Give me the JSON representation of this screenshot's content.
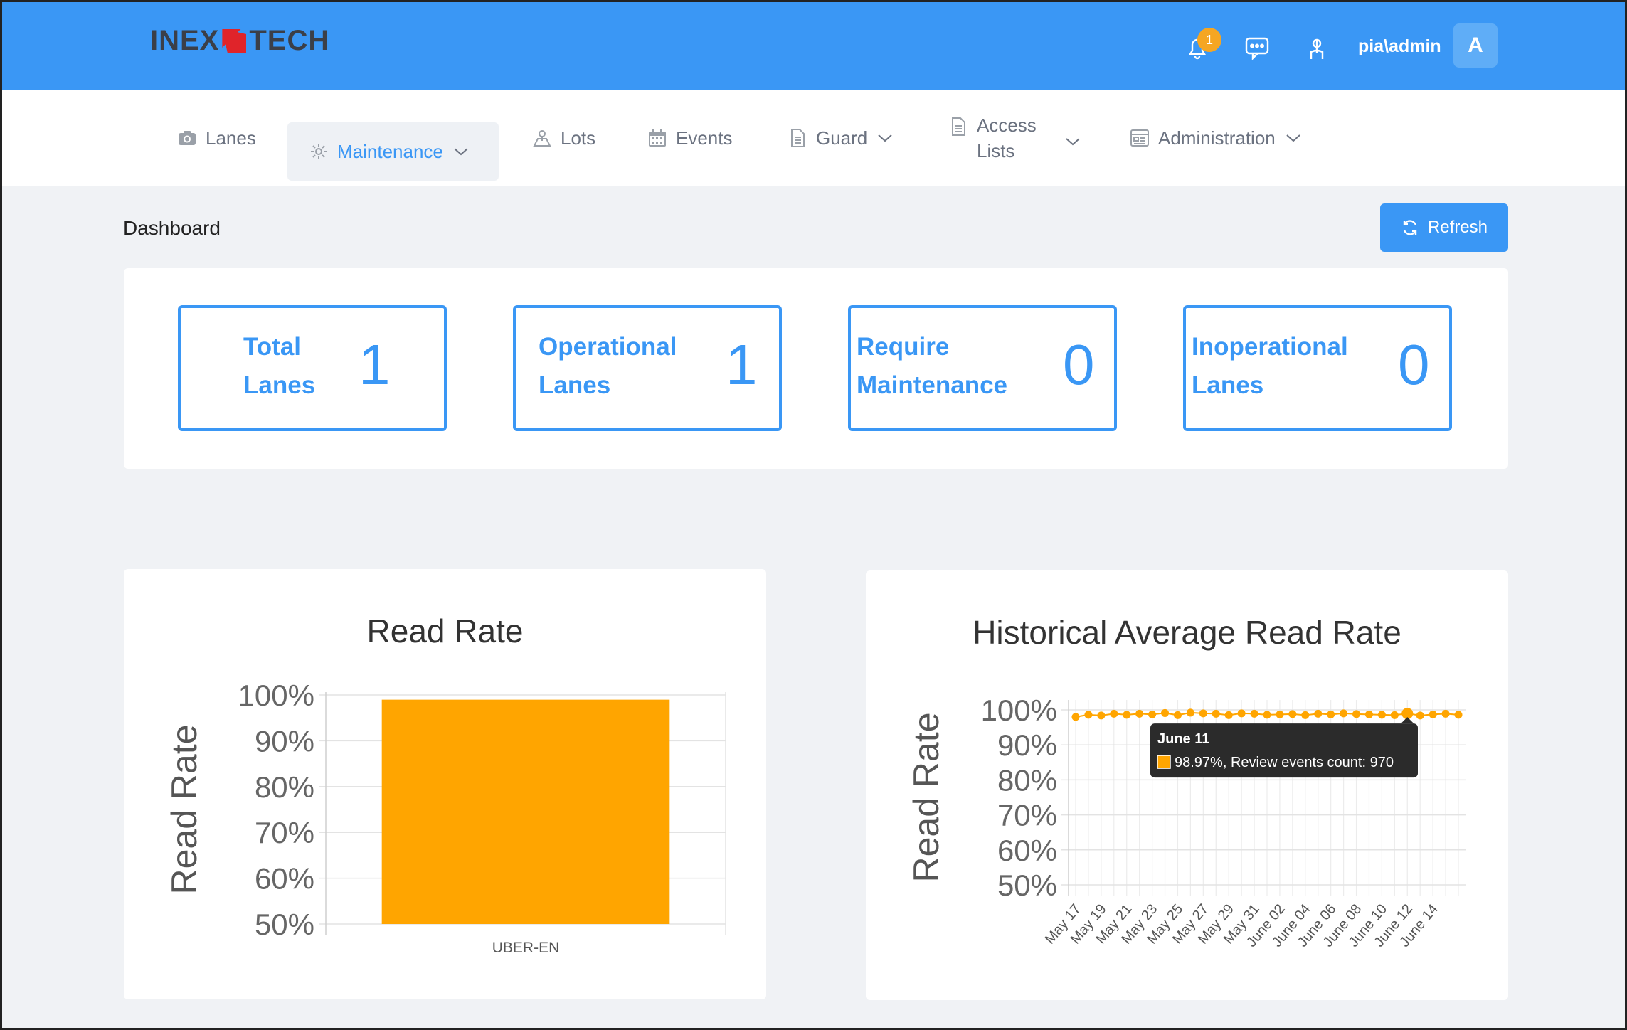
{
  "header": {
    "logo_left": "INEX",
    "logo_right": "TECH",
    "notification_count": "1",
    "username": "pia\\admin",
    "avatar_letter": "A"
  },
  "nav": {
    "items": [
      {
        "label": "Lanes"
      },
      {
        "label": "Maintenance"
      },
      {
        "label": "Lots"
      },
      {
        "label": "Events"
      },
      {
        "label": "Guard"
      },
      {
        "label_line1": "Access",
        "label_line2": "Lists"
      },
      {
        "label": "Administration"
      }
    ]
  },
  "dashboard": {
    "title": "Dashboard",
    "refresh_label": "Refresh"
  },
  "stats": [
    {
      "line1": "Total",
      "line2": "Lanes",
      "value": "1"
    },
    {
      "line1": "Operational",
      "line2": "Lanes",
      "value": "1"
    },
    {
      "line1": "Require",
      "line2": "Maintenance",
      "value": "0"
    },
    {
      "line1": "Inoperational",
      "line2": "Lanes",
      "value": "0"
    }
  ],
  "chart_data": [
    {
      "type": "bar",
      "title": "Read Rate",
      "ylabel": "Read Rate",
      "xlabel": "",
      "categories": [
        "UBER-EN"
      ],
      "values": [
        98.97
      ],
      "ylim": [
        50,
        100
      ],
      "yticks": [
        "100%",
        "90%",
        "80%",
        "70%",
        "60%",
        "50%"
      ],
      "color": "#ffa500"
    },
    {
      "type": "line",
      "title": "Historical Average Read Rate",
      "ylabel": "Read Rate",
      "ylim": [
        50,
        100
      ],
      "yticks": [
        "100%",
        "90%",
        "80%",
        "70%",
        "60%",
        "50%"
      ],
      "xticks": [
        "May 17",
        "May 19",
        "May 21",
        "May 23",
        "May 25",
        "May 27",
        "May 29",
        "May 31",
        "June 02",
        "June 04",
        "June 06",
        "June 08",
        "June 10",
        "June 12",
        "June 14"
      ],
      "values": [
        98.0,
        98.6,
        98.4,
        98.9,
        98.6,
        98.9,
        98.7,
        99.1,
        98.5,
        99.2,
        99.0,
        98.9,
        98.5,
        99.0,
        98.9,
        98.6,
        98.7,
        98.8,
        98.5,
        98.9,
        98.7,
        99.0,
        98.8,
        98.7,
        98.6,
        98.5,
        98.97,
        98.4,
        98.7,
        98.9,
        98.6
      ],
      "color": "#ffa500",
      "tooltip": {
        "title": "June 11",
        "body": "98.97%, Review events count: 970",
        "index": 26
      }
    }
  ]
}
